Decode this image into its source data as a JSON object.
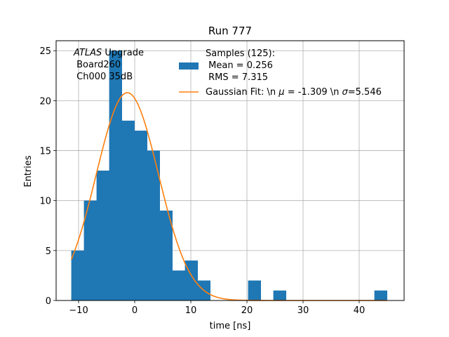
{
  "chart_data": {
    "type": "bar",
    "title": "Run 777",
    "xlabel": "time [ns]",
    "ylabel": "Entries",
    "xlim": [
      -14,
      48
    ],
    "ylim": [
      0,
      26
    ],
    "xticks": [
      -10,
      0,
      10,
      20,
      30,
      40
    ],
    "yticks": [
      0,
      5,
      10,
      15,
      20,
      25
    ],
    "xtick_labels": [
      "−10",
      "0",
      "10",
      "20",
      "30",
      "40"
    ],
    "ytick_labels": [
      "0",
      "5",
      "10",
      "15",
      "20",
      "25"
    ],
    "grid": true,
    "bar_color": "#1f77b4",
    "fit_color": "#ff7f0e",
    "bin_edges": [
      -11.3,
      -9.05,
      -6.8,
      -4.55,
      -2.3,
      -0.05,
      2.2,
      4.45,
      6.7,
      8.95,
      11.2,
      13.45,
      15.7,
      17.95,
      20.2,
      22.45,
      24.7,
      26.95,
      29.2,
      31.45,
      33.7,
      35.95,
      38.2,
      40.45,
      42.7,
      44.95
    ],
    "counts": [
      5,
      10,
      13,
      25,
      18,
      17,
      15,
      9,
      3,
      4,
      2,
      0,
      0,
      0,
      2,
      0,
      1,
      0,
      0,
      0,
      0,
      0,
      0,
      0,
      1
    ],
    "fit": {
      "mu": -1.309,
      "sigma": 5.546,
      "amplitude": 20.8,
      "x_range": [
        -11.3,
        44.95
      ]
    },
    "legend": {
      "location": "top-right",
      "samples_lines": [
        "Samples (125):",
        " Mean = 0.256",
        " RMS = 7.315"
      ],
      "fit_prefix": "Gaussian Fit: \\n ",
      "fit_mu_symbol": "μ",
      "fit_mid": " = -1.309 \\n ",
      "fit_sigma_symbol": "σ",
      "fit_suffix": "=5.546"
    },
    "annotation": {
      "italic_word": "ATLAS",
      "rest_first_line": " Upgrade",
      "line2": " Board260",
      "line3": " Ch000 35dB"
    }
  }
}
